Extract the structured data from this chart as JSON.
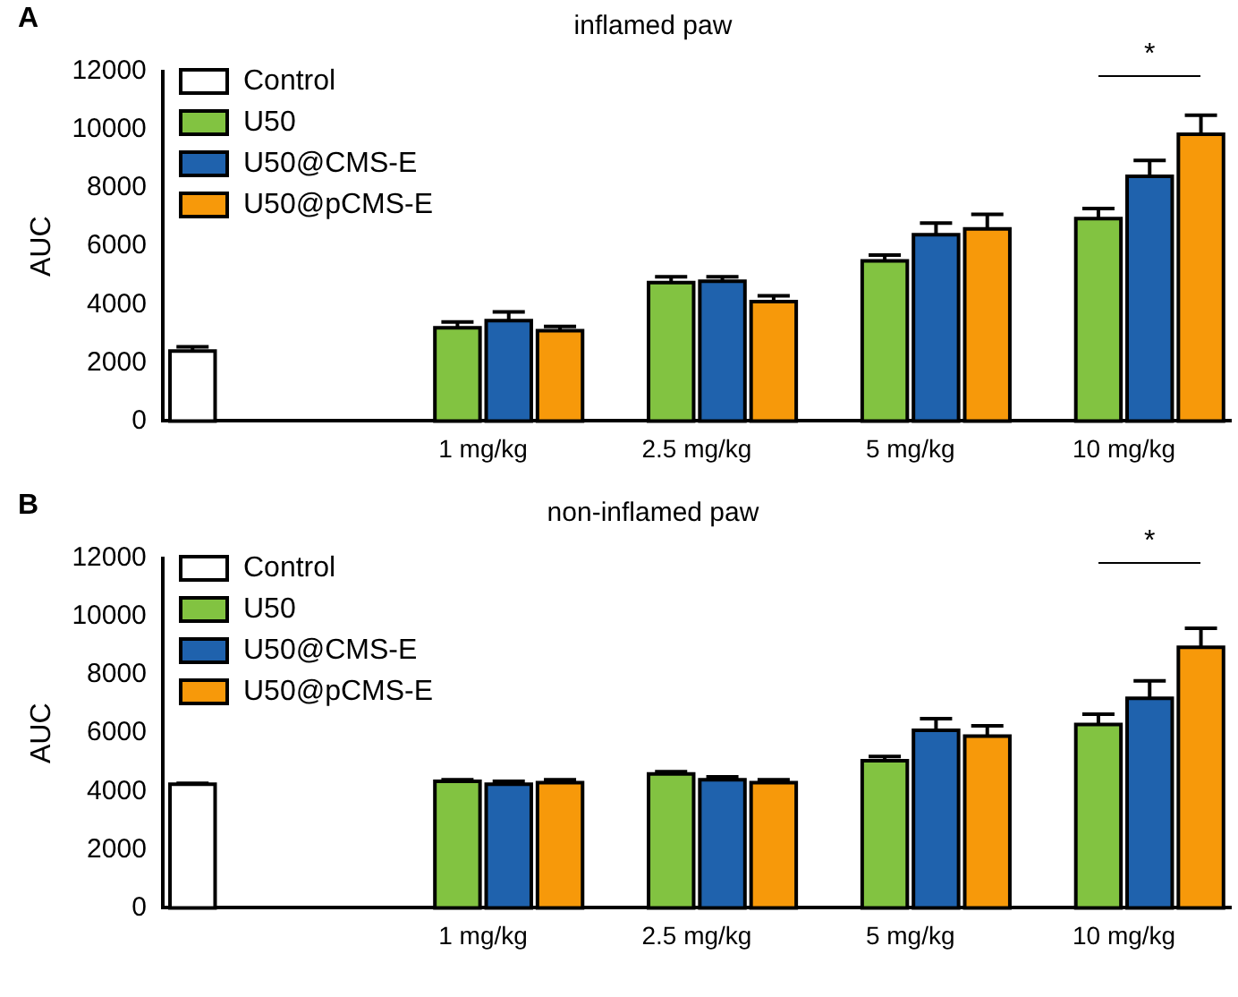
{
  "chart_data": [
    {
      "type": "bar",
      "title": "inflamed paw",
      "ylabel": "AUC",
      "categories": [
        null,
        "1 mg/kg",
        "2.5 mg/kg",
        "5 mg/kg",
        "10 mg/kg"
      ],
      "ylim": [
        0,
        12000
      ],
      "yticks": [
        0,
        2000,
        4000,
        6000,
        8000,
        10000,
        12000
      ],
      "grid": false,
      "legend": "top left",
      "annotations": [
        "A",
        "*"
      ],
      "series": [
        {
          "name": "Control",
          "color": "#ffffff",
          "values": [
            2400,
            null,
            null,
            null,
            null
          ],
          "errors": [
            [
              2400,
              2550
            ],
            null,
            null,
            null,
            null
          ]
        },
        {
          "name": "U50",
          "color": "#82c341",
          "values": [
            null,
            3200,
            4750,
            5500,
            6950
          ],
          "errors": [
            null,
            [
              3200,
              3400
            ],
            [
              4750,
              4950
            ],
            [
              5500,
              5700
            ],
            [
              6950,
              7300
            ]
          ]
        },
        {
          "name": "U50@CMS-E",
          "color": "#1f62ad",
          "values": [
            null,
            3450,
            4800,
            6400,
            8400
          ],
          "errors": [
            null,
            [
              3450,
              3750
            ],
            [
              4800,
              4950
            ],
            [
              6400,
              6800
            ],
            [
              8400,
              8950
            ]
          ]
        },
        {
          "name": "U50@pCMS-E",
          "color": "#f7990a",
          "values": [
            null,
            3100,
            4100,
            6600,
            9850
          ],
          "errors": [
            null,
            [
              3100,
              3250
            ],
            [
              4100,
              4300
            ],
            [
              6600,
              7100
            ],
            [
              9850,
              10500
            ]
          ]
        }
      ]
    },
    {
      "type": "bar",
      "title": "non-inflamed paw",
      "ylabel": "AUC",
      "categories": [
        null,
        "1 mg/kg",
        "2.5 mg/kg",
        "5 mg/kg",
        "10 mg/kg"
      ],
      "ylim": [
        0,
        12000
      ],
      "yticks": [
        0,
        2000,
        4000,
        6000,
        8000,
        10000,
        12000
      ],
      "grid": false,
      "legend": "top left",
      "annotations": [
        "B",
        "*"
      ],
      "series": [
        {
          "name": "Control",
          "color": "#ffffff",
          "values": [
            4250,
            null,
            null,
            null,
            null
          ],
          "errors": [
            [
              4250,
              4280
            ],
            null,
            null,
            null,
            null
          ]
        },
        {
          "name": "U50",
          "color": "#82c341",
          "values": [
            null,
            4350,
            4600,
            5050,
            6300
          ],
          "errors": [
            null,
            [
              4350,
              4400
            ],
            [
              4600,
              4680
            ],
            [
              5050,
              5200
            ],
            [
              6300,
              6650
            ]
          ]
        },
        {
          "name": "U50@CMS-E",
          "color": "#1f62ad",
          "values": [
            null,
            4250,
            4400,
            6100,
            7200
          ],
          "errors": [
            null,
            [
              4250,
              4350
            ],
            [
              4400,
              4500
            ],
            [
              6100,
              6500
            ],
            [
              7200,
              7800
            ]
          ]
        },
        {
          "name": "U50@pCMS-E",
          "color": "#f7990a",
          "values": [
            null,
            4300,
            4300,
            5900,
            8950
          ],
          "errors": [
            null,
            [
              4300,
              4400
            ],
            [
              4300,
              4400
            ],
            [
              5900,
              6250
            ],
            [
              8950,
              9600
            ]
          ]
        }
      ]
    }
  ]
}
